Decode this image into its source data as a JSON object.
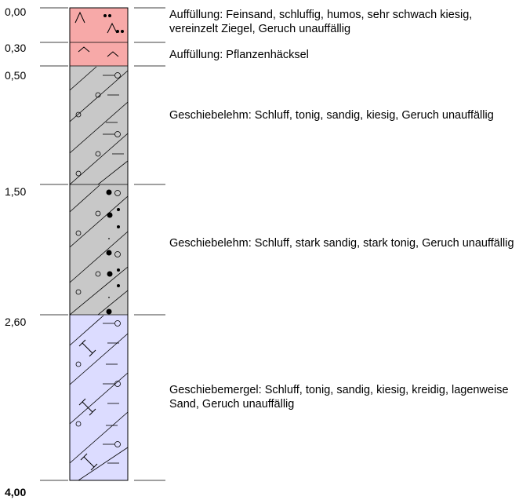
{
  "depths": [
    "0,00",
    "0,30",
    "0,50",
    "1,50",
    "2,60",
    "4,00"
  ],
  "layers": [
    {
      "top": "0,00",
      "bottom": "0,30",
      "fill": "#f7a9a8",
      "pattern": "fill-humus",
      "description": "Auffüllung: Feinsand, schluffig, humos, sehr schwach kiesig, vereinzelt Ziegel, Geruch unauffällig"
    },
    {
      "top": "0,30",
      "bottom": "0,50",
      "fill": "#f7a9a8",
      "pattern": "fill-plant",
      "description": "Auffüllung: Pflanzenhäcksel"
    },
    {
      "top": "0,50",
      "bottom": "1,50",
      "fill": "#c8c8c8",
      "pattern": "till-loam",
      "description": "Geschiebelehm: Schluff, tonig, sandig, kiesig, Geruch unauffällig"
    },
    {
      "top": "1,50",
      "bottom": "2,60",
      "fill": "#c8c8c8",
      "pattern": "till-loam-sandy",
      "description": "Geschiebelehm: Schluff, stark sandig, stark tonig, Geruch unauffällig"
    },
    {
      "top": "2,60",
      "bottom": "4,00",
      "fill": "#dcdcff",
      "pattern": "till-marl",
      "description": "Geschiebemergel: Schluff, tonig, sandig, kiesig, kreidig, lagenweise Sand, Geruch unauffällig"
    }
  ]
}
